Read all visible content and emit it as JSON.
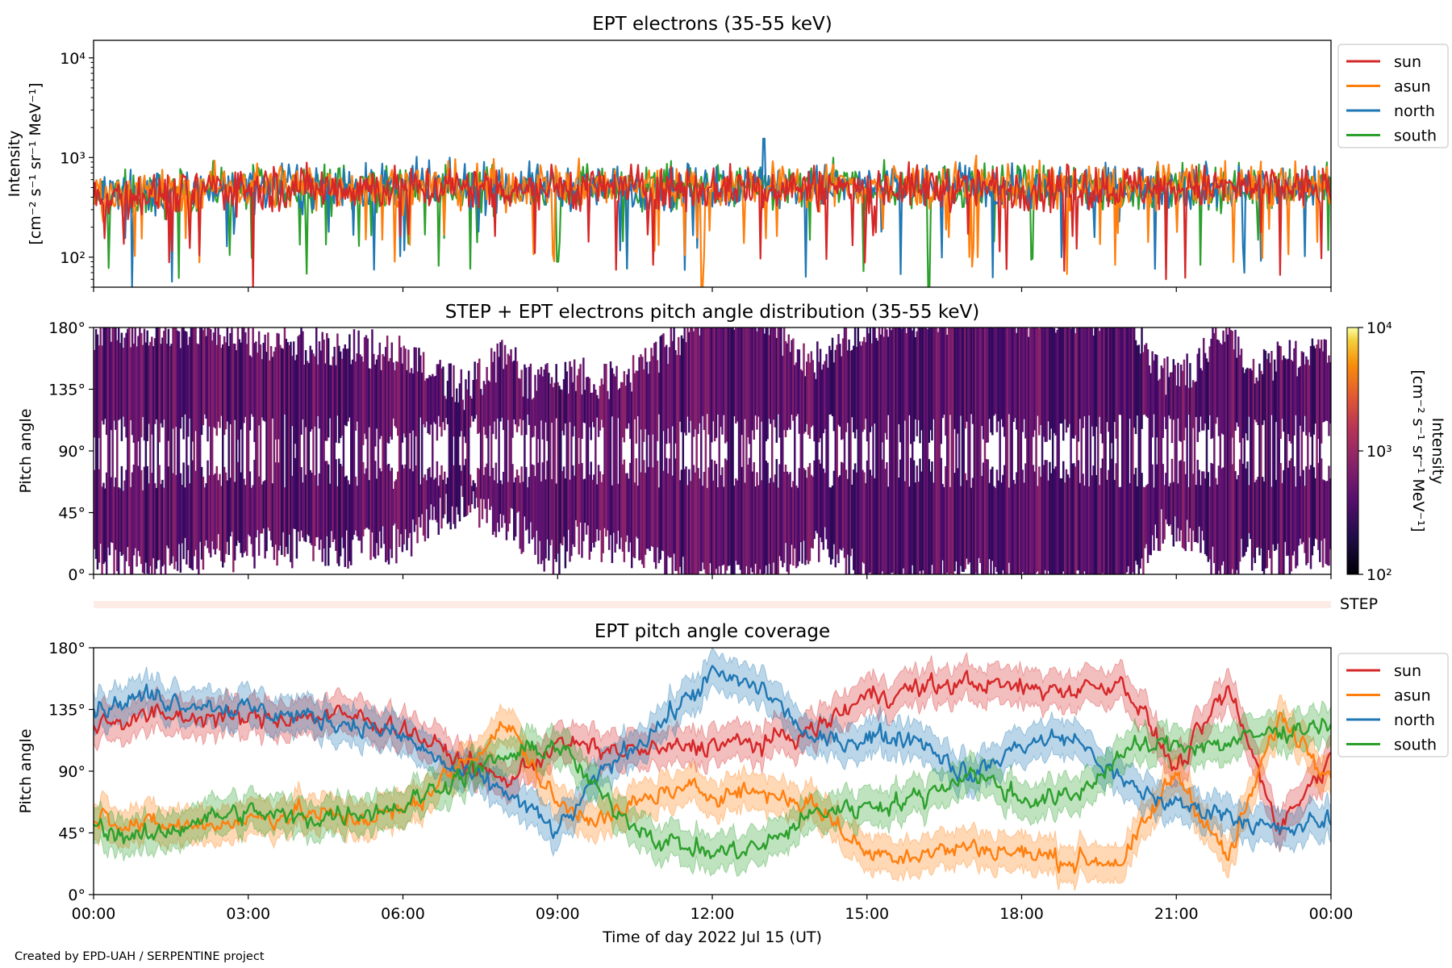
{
  "credit": "Created by EPD-UAH / SERPENTINE project",
  "colors": {
    "sun": "#d62728",
    "asun": "#ff7f0e",
    "north": "#1f77b4",
    "south": "#2ca02c"
  },
  "chart_data": [
    {
      "type": "line",
      "title": "EPT electrons (35-55 keV)",
      "ylabel": "Intensity",
      "yunit": "[cm⁻² s⁻¹ sr⁻¹ MeV⁻¹]",
      "yscale": "log",
      "ylim": [
        50,
        15000
      ],
      "yticks": [
        {
          "value": 100,
          "label": "10²"
        },
        {
          "value": 1000,
          "label": "10³"
        },
        {
          "value": 10000,
          "label": "10⁴"
        }
      ],
      "x_range_hours": [
        0,
        24
      ],
      "legend": "upper-right-outside",
      "grid": false,
      "series": [
        {
          "name": "sun",
          "typical_median": 500,
          "typical_range": [
            150,
            1000
          ],
          "notable_values": [
            {
              "hour": 3.1,
              "value": 50
            },
            {
              "hour": 20.8,
              "value": 60
            }
          ]
        },
        {
          "name": "asun",
          "typical_median": 520,
          "typical_range": [
            200,
            1100
          ],
          "notable_values": [
            {
              "hour": 11.8,
              "value": 50
            },
            {
              "hour": 5.6,
              "value": 150
            }
          ]
        },
        {
          "name": "north",
          "typical_median": 510,
          "typical_range": [
            200,
            1050
          ],
          "notable_values": [
            {
              "hour": 13.0,
              "value": 1550
            },
            {
              "hour": 0.75,
              "value": 50
            }
          ]
        },
        {
          "name": "south",
          "typical_median": 500,
          "typical_range": [
            180,
            1000
          ],
          "notable_values": [
            {
              "hour": 16.2,
              "value": 50
            },
            {
              "hour": 9.0,
              "value": 90
            }
          ]
        }
      ]
    },
    {
      "type": "heatmap",
      "title": "STEP + EPT electrons pitch angle distribution (35-55 keV)",
      "ylabel": "Pitch angle",
      "ylim": [
        0,
        180
      ],
      "yticks": [
        "0°",
        "45°",
        "90°",
        "135°",
        "180°"
      ],
      "x_range_hours": [
        0,
        24
      ],
      "colormap": "inferno",
      "colorbar": {
        "label": "Intensity",
        "unit": "[cm⁻² s⁻¹ sr⁻¹ MeV⁻¹]",
        "scale": "log",
        "range": [
          100,
          10000
        ],
        "ticks": [
          {
            "value": 100,
            "label": "10²"
          },
          {
            "value": 1000,
            "label": "10³"
          },
          {
            "value": 10000,
            "label": "10⁴"
          }
        ]
      },
      "typical_intensity": 500,
      "note_label": "STEP"
    },
    {
      "type": "line",
      "title": "EPT pitch angle coverage",
      "ylabel": "Pitch angle",
      "xlabel": "Time of day 2022 Jul 15 (UT)",
      "ylim": [
        0,
        180
      ],
      "yticks": [
        "0°",
        "45°",
        "90°",
        "135°",
        "180°"
      ],
      "xticks": [
        "00:00",
        "03:00",
        "06:00",
        "09:00",
        "12:00",
        "15:00",
        "18:00",
        "21:00",
        "00:00"
      ],
      "x_range_hours": [
        0,
        24
      ],
      "legend": "upper-right-outside",
      "grid": false,
      "series": [
        {
          "name": "sun",
          "hours": [
            0,
            1,
            2,
            3,
            4,
            5,
            6,
            7,
            8,
            9,
            10,
            11,
            12,
            13,
            14,
            15,
            16,
            17,
            18,
            19,
            20,
            21,
            22,
            23,
            24
          ],
          "values": [
            125,
            130,
            130,
            128,
            130,
            130,
            122,
            100,
            82,
            110,
            105,
            105,
            110,
            110,
            120,
            145,
            150,
            155,
            150,
            150,
            155,
            90,
            150,
            50,
            100
          ]
        },
        {
          "name": "asun",
          "hours": [
            0,
            1,
            2,
            3,
            4,
            5,
            6,
            7,
            8,
            9,
            10,
            11,
            12,
            13,
            14,
            15,
            16,
            17,
            18,
            19,
            20,
            21,
            22,
            23,
            24
          ],
          "values": [
            60,
            50,
            50,
            55,
            60,
            55,
            60,
            90,
            125,
            65,
            55,
            75,
            75,
            75,
            65,
            30,
            30,
            35,
            30,
            25,
            25,
            90,
            25,
            130,
            90
          ]
        },
        {
          "name": "north",
          "hours": [
            0,
            1,
            2,
            3,
            4,
            5,
            6,
            7,
            8,
            9,
            10,
            11,
            12,
            13,
            14,
            15,
            16,
            17,
            18,
            19,
            20,
            21,
            22,
            23,
            24
          ],
          "values": [
            135,
            145,
            140,
            135,
            130,
            125,
            115,
            90,
            75,
            45,
            95,
            125,
            160,
            150,
            110,
            115,
            115,
            85,
            110,
            115,
            80,
            65,
            60,
            45,
            55
          ]
        },
        {
          "name": "south",
          "hours": [
            0,
            1,
            2,
            3,
            4,
            5,
            6,
            7,
            8,
            9,
            10,
            11,
            12,
            13,
            14,
            15,
            16,
            17,
            18,
            19,
            20,
            21,
            22,
            23,
            24
          ],
          "values": [
            50,
            40,
            55,
            60,
            55,
            60,
            65,
            85,
            100,
            110,
            65,
            40,
            30,
            35,
            60,
            65,
            70,
            90,
            70,
            70,
            105,
            110,
            110,
            120,
            125
          ]
        }
      ]
    }
  ]
}
